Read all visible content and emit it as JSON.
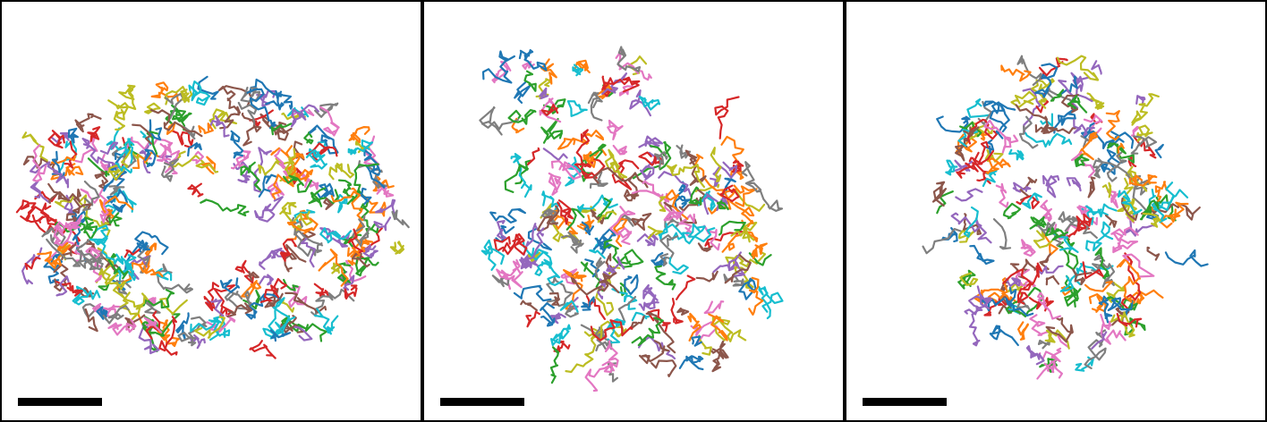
{
  "figure": {
    "panel_count": 3,
    "track_palette": [
      "#1f77b4",
      "#ff7f0e",
      "#2ca02c",
      "#d62728",
      "#9467bd",
      "#8c564b",
      "#e377c2",
      "#7f7f7f",
      "#bcbd22",
      "#17becf"
    ],
    "background": "#ffffff",
    "scale_bar_color": "#000000",
    "panels": [
      {
        "name": "panel-1",
        "shape": "ring",
        "tracks_drawn": 300
      },
      {
        "name": "panel-2",
        "shape": "irregular blob",
        "tracks_drawn": 230
      },
      {
        "name": "panel-3",
        "shape": "rounded blob",
        "tracks_drawn": 200
      }
    ]
  }
}
